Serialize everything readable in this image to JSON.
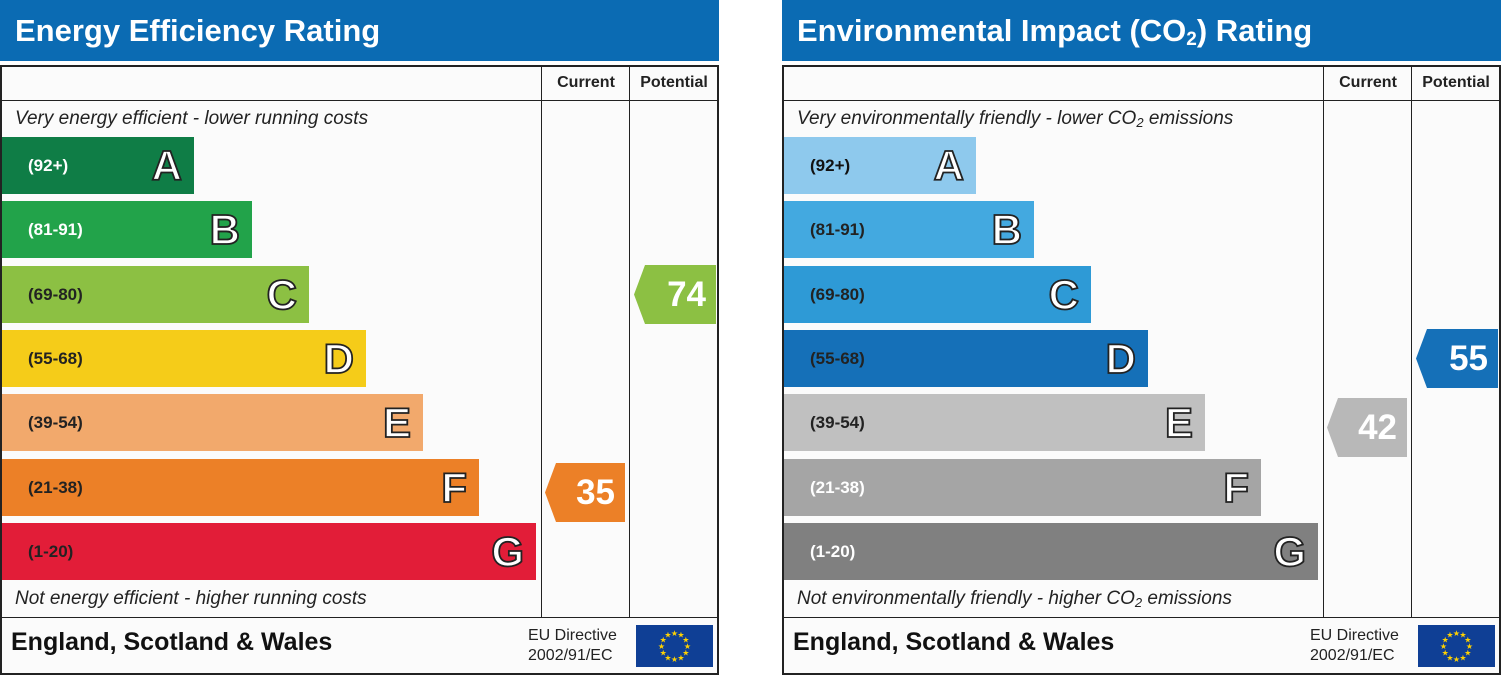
{
  "panels": [
    {
      "title_main": "Energy Efficiency Rating",
      "title_sub": "",
      "title_tail": "",
      "col_current": "Current",
      "col_potential": "Potential",
      "top_note_main": "Very energy efficient - lower running costs",
      "top_note_sub": "",
      "top_note_tail": "",
      "bottom_note_main": "Not energy efficient - higher running costs",
      "bottom_note_sub": "",
      "bottom_note_tail": "",
      "country": "England, Scotland & Wales",
      "eu_line1": "EU Directive",
      "eu_line2": "2002/91/EC",
      "band_colors": [
        "#0f7d46",
        "#22a34a",
        "#8cc043",
        "#f5cc19",
        "#f2a96c",
        "#ec8027",
        "#e21d38"
      ],
      "range_text_colors": [
        "#ffffff",
        "#ffffff",
        "#222222",
        "#222222",
        "#222222",
        "#222222",
        "#222222"
      ],
      "current_color": "#ec8027",
      "potential_color": "#8cc043"
    },
    {
      "title_main": "Environmental Impact (CO",
      "title_sub": "2",
      "title_tail": ") Rating",
      "col_current": "Current",
      "col_potential": "Potential",
      "top_note_main": "Very environmentally friendly - lower CO",
      "top_note_sub": "2",
      "top_note_tail": " emissions",
      "bottom_note_main": "Not environmentally friendly - higher CO",
      "bottom_note_sub": "2",
      "bottom_note_tail": " emissions",
      "country": "England, Scotland & Wales",
      "eu_line1": "EU Directive",
      "eu_line2": "2002/91/EC",
      "band_colors": [
        "#8ec9ed",
        "#43a9e0",
        "#2e9ad6",
        "#1570b8",
        "#c0c0c0",
        "#a5a5a5",
        "#808080"
      ],
      "range_text_colors": [
        "#111111",
        "#222222",
        "#222222",
        "#222222",
        "#222222",
        "#ffffff",
        "#ffffff"
      ],
      "current_color": "#b8b8b8",
      "potential_color": "#1570b8"
    }
  ],
  "chart_data": [
    {
      "type": "bar",
      "title": "Energy Efficiency Rating",
      "bands": [
        {
          "letter": "A",
          "range": "(92+)"
        },
        {
          "letter": "B",
          "range": "(81-91)"
        },
        {
          "letter": "C",
          "range": "(69-80)"
        },
        {
          "letter": "D",
          "range": "(55-68)"
        },
        {
          "letter": "E",
          "range": "(39-54)"
        },
        {
          "letter": "F",
          "range": "(21-38)"
        },
        {
          "letter": "G",
          "range": "(1-20)"
        }
      ],
      "current": 35,
      "potential": 74
    },
    {
      "type": "bar",
      "title": "Environmental Impact (CO2) Rating",
      "bands": [
        {
          "letter": "A",
          "range": "(92+)"
        },
        {
          "letter": "B",
          "range": "(81-91)"
        },
        {
          "letter": "C",
          "range": "(69-80)"
        },
        {
          "letter": "D",
          "range": "(55-68)"
        },
        {
          "letter": "E",
          "range": "(39-54)"
        },
        {
          "letter": "F",
          "range": "(21-38)"
        },
        {
          "letter": "G",
          "range": "(1-20)"
        }
      ],
      "current": 42,
      "potential": 55
    }
  ]
}
